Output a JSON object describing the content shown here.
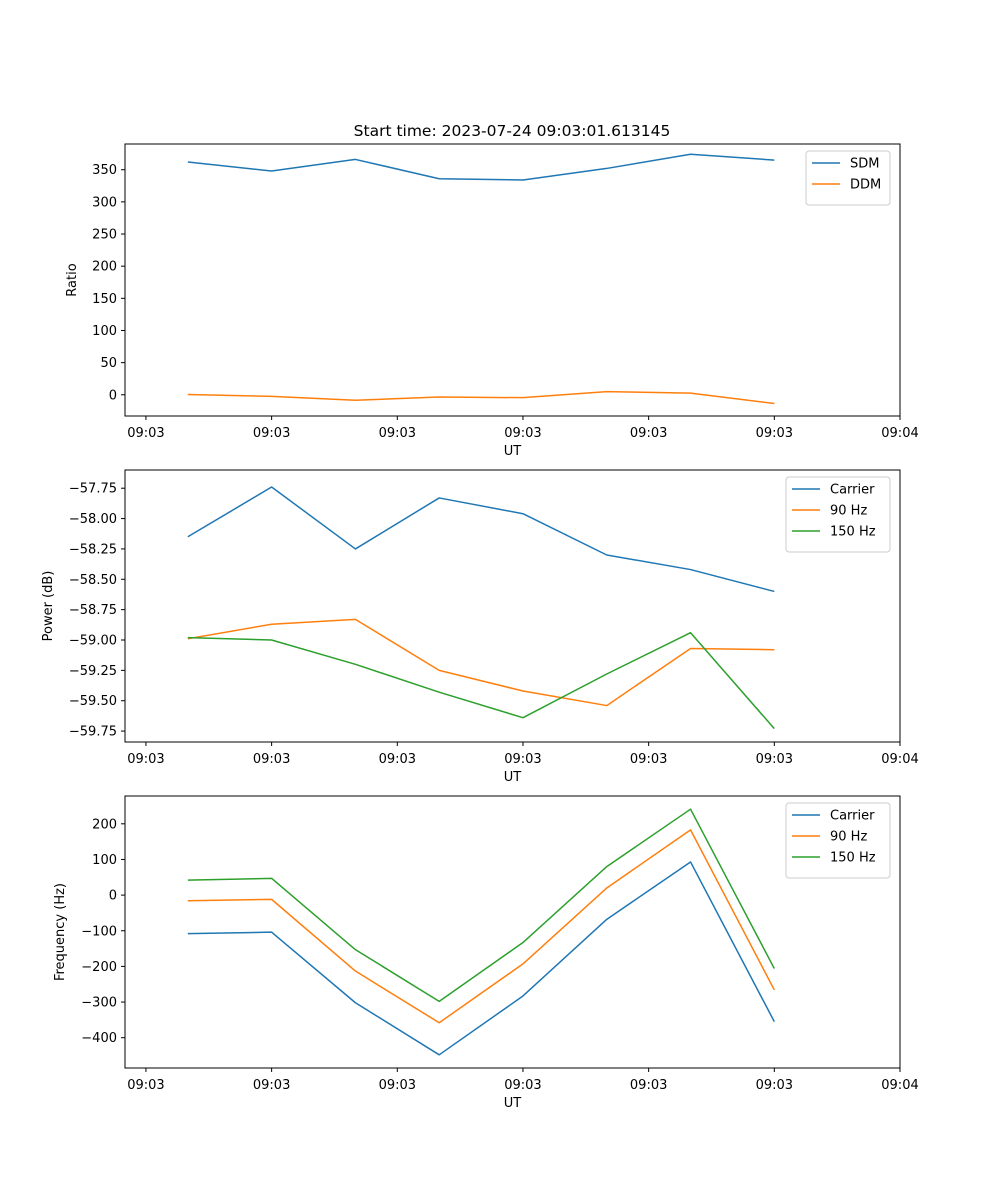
{
  "title": "Start time: 2023-07-24 09:03:01.613145",
  "colors": {
    "blue": "#1f77b4",
    "orange": "#ff7f0e",
    "green": "#2ca02c"
  },
  "chart_data": [
    {
      "type": "line",
      "xlabel": "UT",
      "ylabel": "Ratio",
      "x_index": [
        0,
        1,
        2,
        3,
        4,
        5,
        6,
        7
      ],
      "x_tick_positions": [
        -0.5,
        1,
        2.5,
        4,
        5.5,
        7,
        8.5
      ],
      "x_tick_labels": [
        "09:03",
        "09:03",
        "09:03",
        "09:03",
        "09:03",
        "09:03",
        "09:04"
      ],
      "xlim": [
        -0.75,
        8.5
      ],
      "ylim": [
        -33,
        390
      ],
      "y_ticks": [
        0,
        50,
        100,
        150,
        200,
        250,
        300,
        350
      ],
      "y_tick_labels": [
        "0",
        "50",
        "100",
        "150",
        "200",
        "250",
        "300",
        "350"
      ],
      "legend_position": "top-right",
      "series": [
        {
          "name": "SDM",
          "color": "#1f77b4",
          "values": [
            362,
            348,
            366,
            336,
            334,
            352,
            374,
            365
          ]
        },
        {
          "name": "DDM",
          "color": "#ff7f0e",
          "values": [
            0.5,
            -2.5,
            -8.5,
            -3.5,
            -4.5,
            5,
            2.5,
            -13.5
          ]
        }
      ]
    },
    {
      "type": "line",
      "xlabel": "UT",
      "ylabel": "Power (dB)",
      "x_index": [
        0,
        1,
        2,
        3,
        4,
        5,
        6,
        7
      ],
      "x_tick_positions": [
        -0.5,
        1,
        2.5,
        4,
        5.5,
        7,
        8.5
      ],
      "x_tick_labels": [
        "09:03",
        "09:03",
        "09:03",
        "09:03",
        "09:03",
        "09:03",
        "09:04"
      ],
      "xlim": [
        -0.75,
        8.5
      ],
      "ylim": [
        -59.84,
        -57.6
      ],
      "y_ticks": [
        -59.75,
        -59.5,
        -59.25,
        -59.0,
        -58.75,
        -58.5,
        -58.25,
        -58.0,
        -57.75
      ],
      "y_tick_labels": [
        "−59.75",
        "−59.50",
        "−59.25",
        "−59.00",
        "−58.75",
        "−58.50",
        "−58.25",
        "−58.00",
        "−57.75"
      ],
      "legend_position": "top-right",
      "series": [
        {
          "name": "Carrier",
          "color": "#1f77b4",
          "values": [
            -58.15,
            -57.74,
            -58.25,
            -57.83,
            -57.96,
            -58.3,
            -58.42,
            -58.6
          ]
        },
        {
          "name": "90 Hz",
          "color": "#ff7f0e",
          "values": [
            -58.99,
            -58.87,
            -58.83,
            -59.25,
            -59.42,
            -59.54,
            -59.07,
            -59.08
          ]
        },
        {
          "name": "150 Hz",
          "color": "#2ca02c",
          "values": [
            -58.98,
            -59.0,
            -59.2,
            -59.43,
            -59.64,
            -59.28,
            -58.94,
            -59.73
          ]
        }
      ]
    },
    {
      "type": "line",
      "xlabel": "UT",
      "ylabel": "Frequency (Hz)",
      "x_index": [
        0,
        1,
        2,
        3,
        4,
        5,
        6,
        7
      ],
      "x_tick_positions": [
        -0.5,
        1,
        2.5,
        4,
        5.5,
        7,
        8.5
      ],
      "x_tick_labels": [
        "09:03",
        "09:03",
        "09:03",
        "09:03",
        "09:03",
        "09:03",
        "09:04"
      ],
      "xlim": [
        -0.75,
        8.5
      ],
      "ylim": [
        -485,
        278
      ],
      "y_ticks": [
        -400,
        -300,
        -200,
        -100,
        0,
        100,
        200
      ],
      "y_tick_labels": [
        "−400",
        "−300",
        "−200",
        "−100",
        "0",
        "100",
        "200"
      ],
      "legend_position": "top-right",
      "series": [
        {
          "name": "Carrier",
          "color": "#1f77b4",
          "values": [
            -108,
            -104,
            -302,
            -448,
            -283,
            -68,
            93,
            -355
          ]
        },
        {
          "name": "90 Hz",
          "color": "#ff7f0e",
          "values": [
            -16,
            -12,
            -213,
            -358,
            -193,
            20,
            183,
            -266
          ]
        },
        {
          "name": "150 Hz",
          "color": "#2ca02c",
          "values": [
            42,
            47,
            -153,
            -298,
            -133,
            80,
            241,
            -206
          ]
        }
      ]
    }
  ]
}
